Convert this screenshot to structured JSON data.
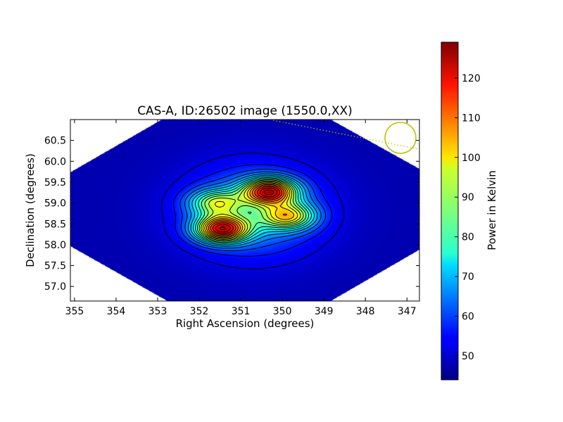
{
  "chart_data": {
    "type": "heatmap",
    "title": "CAS-A, ID:26502 image (1550.0,XX)",
    "xlabel": "Right Ascension (degrees)",
    "ylabel": "Declination (degrees)",
    "xlim": [
      355.1,
      346.7
    ],
    "ylim": [
      56.65,
      61.0
    ],
    "x_ticks": [
      "355",
      "354",
      "353",
      "352",
      "351",
      "350",
      "349",
      "348",
      "347"
    ],
    "x_tick_values": [
      355,
      354,
      353,
      352,
      351,
      350,
      349,
      348,
      347
    ],
    "y_ticks": [
      "57.0",
      "57.5",
      "58.0",
      "58.5",
      "59.0",
      "59.5",
      "60.0",
      "60.5"
    ],
    "y_tick_values": [
      57.0,
      57.5,
      58.0,
      58.5,
      59.0,
      59.5,
      60.0,
      60.5
    ],
    "colorbar": {
      "label": "Power in Kelvin",
      "range": [
        44,
        129
      ],
      "ticks": [
        "50",
        "60",
        "70",
        "80",
        "90",
        "100",
        "110",
        "120"
      ],
      "tick_values": [
        50,
        60,
        70,
        80,
        90,
        100,
        110,
        120
      ],
      "colormap": "jet"
    },
    "background_level": 48,
    "sources": [
      {
        "ra": 351.45,
        "dec": 58.37,
        "peak": 127
      },
      {
        "ra": 350.3,
        "dec": 59.27,
        "peak": 126
      },
      {
        "ra": 349.85,
        "dec": 58.68,
        "peak": 104
      },
      {
        "ra": 351.6,
        "dec": 59.0,
        "peak": 97
      }
    ],
    "contour_levels": [
      52,
      56,
      60,
      64,
      68,
      72,
      76,
      80,
      84,
      88,
      92,
      96,
      100,
      104,
      108,
      112,
      116,
      120,
      124
    ],
    "beam_circle": {
      "ra": 347.2,
      "dec": 60.55,
      "color": "#bfbf00"
    }
  }
}
